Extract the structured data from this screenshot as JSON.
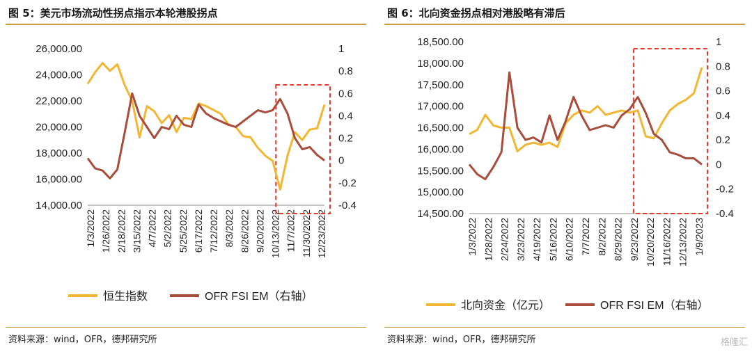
{
  "figures": [
    {
      "title": "图 5：美元市场流动性拐点指示本轮港股拐点",
      "source": "资料来源：wind，OFR，德邦研究所"
    },
    {
      "title": "图 6：北向资金拐点相对港股略有滞后",
      "source": "资料来源：wind，OFR，德邦研究所"
    }
  ],
  "watermark": "格隆汇",
  "chart_data": [
    {
      "type": "line",
      "title": "",
      "ylim": [
        14000,
        26000
      ],
      "y2lim": [
        -0.4,
        1.0
      ],
      "y_ticks": [
        "14,000.00",
        "16,000.00",
        "18,000.00",
        "20,000.00",
        "22,000.00",
        "24,000.00",
        "26,000.00"
      ],
      "y2_ticks": [
        "-0.4",
        "-0.2",
        "0",
        "0.2",
        "0.4",
        "0.6",
        "0.8",
        "1"
      ],
      "x_ticks": [
        "1/3/2022",
        "1/26/2022",
        "2/18/2022",
        "3/15/2022",
        "4/7/2022",
        "5/2/2022",
        "5/25/2022",
        "6/17/2022",
        "7/12/2022",
        "8/3/2022",
        "8/26/2022",
        "9/20/2022",
        "10/13/2022",
        "11/7/2022",
        "11/30/2022",
        "12/23/2022"
      ],
      "x": [
        0,
        1,
        2,
        3,
        4,
        5,
        6,
        7,
        8,
        9,
        10,
        11,
        12,
        13,
        14,
        15,
        16,
        17,
        18,
        19,
        20,
        21,
        22,
        23,
        24,
        25,
        26,
        27,
        28,
        29,
        30,
        31,
        32
      ],
      "legend": [
        "恒生指数",
        "OFR FSI EM（右轴）"
      ],
      "series": [
        {
          "name": "恒生指数",
          "axis": "left",
          "color": "#f2b632",
          "values": [
            23300,
            24200,
            24900,
            24300,
            24800,
            23200,
            22000,
            19200,
            21600,
            21200,
            20300,
            20900,
            19600,
            20700,
            20600,
            21800,
            21600,
            21300,
            21000,
            20200,
            20000,
            19300,
            19200,
            18400,
            17800,
            17400,
            15200,
            17800,
            19600,
            19000,
            19800,
            19900,
            21700
          ]
        },
        {
          "name": "OFR FSI EM（右轴）",
          "axis": "right",
          "color": "#a84c3c",
          "values": [
            0.02,
            -0.07,
            -0.09,
            -0.16,
            -0.08,
            0.25,
            0.6,
            0.4,
            0.3,
            0.2,
            0.3,
            0.28,
            0.4,
            0.32,
            0.3,
            0.5,
            0.42,
            0.38,
            0.35,
            0.32,
            0.3,
            0.35,
            0.4,
            0.45,
            0.43,
            0.45,
            0.55,
            0.42,
            0.2,
            0.1,
            0.12,
            0.05,
            0.0
          ]
        }
      ],
      "annotation_box_x": [
        26,
        32
      ]
    },
    {
      "type": "line",
      "title": "",
      "ylim": [
        14500,
        18500
      ],
      "y2lim": [
        -0.4,
        1.0
      ],
      "y_ticks": [
        "14,500.00",
        "15,000.00",
        "15,500.00",
        "16,000.00",
        "16,500.00",
        "17,000.00",
        "17,500.00",
        "18,000.00",
        "18,500.00"
      ],
      "y2_ticks": [
        "-0.4",
        "-0.2",
        "0",
        "0.2",
        "0.4",
        "0.6",
        "0.8",
        "1"
      ],
      "x_ticks": [
        "1/3/2022",
        "1/28/2022",
        "2/24/2022",
        "3/23/2022",
        "4/19/2022",
        "5/16/2022",
        "6/10/2022",
        "7/7/2022",
        "8/2/2022",
        "8/29/2022",
        "9/23/2022",
        "10/20/2022",
        "11/16/2022",
        "12/13/2022",
        "1/9/2023"
      ],
      "x": [
        0,
        1,
        2,
        3,
        4,
        5,
        6,
        7,
        8,
        9,
        10,
        11,
        12,
        13,
        14,
        15,
        16,
        17,
        18,
        19,
        20,
        21,
        22,
        23,
        24,
        25,
        26,
        27,
        28,
        29
      ],
      "legend": [
        "北向资金（亿元）",
        "OFR FSI EM（右轴）"
      ],
      "series": [
        {
          "name": "北向资金（亿元）",
          "axis": "left",
          "color": "#f2b632",
          "values": [
            16350,
            16450,
            16800,
            16550,
            16500,
            16500,
            15950,
            16100,
            16150,
            16100,
            16150,
            16050,
            16600,
            16800,
            16900,
            16850,
            17000,
            16800,
            16850,
            16900,
            16850,
            16900,
            16300,
            16250,
            16600,
            16900,
            17050,
            17150,
            17300,
            17900
          ]
        },
        {
          "name": "OFR FSI EM（右轴）",
          "axis": "right",
          "color": "#a84c3c",
          "values": [
            0.0,
            -0.08,
            -0.12,
            -0.02,
            0.1,
            0.75,
            0.3,
            0.2,
            0.22,
            0.18,
            0.4,
            0.2,
            0.35,
            0.55,
            0.4,
            0.28,
            0.3,
            0.32,
            0.3,
            0.4,
            0.45,
            0.55,
            0.42,
            0.25,
            0.2,
            0.1,
            0.08,
            0.05,
            0.05,
            0.0
          ]
        }
      ],
      "annotation_box_x": [
        21,
        29
      ]
    }
  ]
}
